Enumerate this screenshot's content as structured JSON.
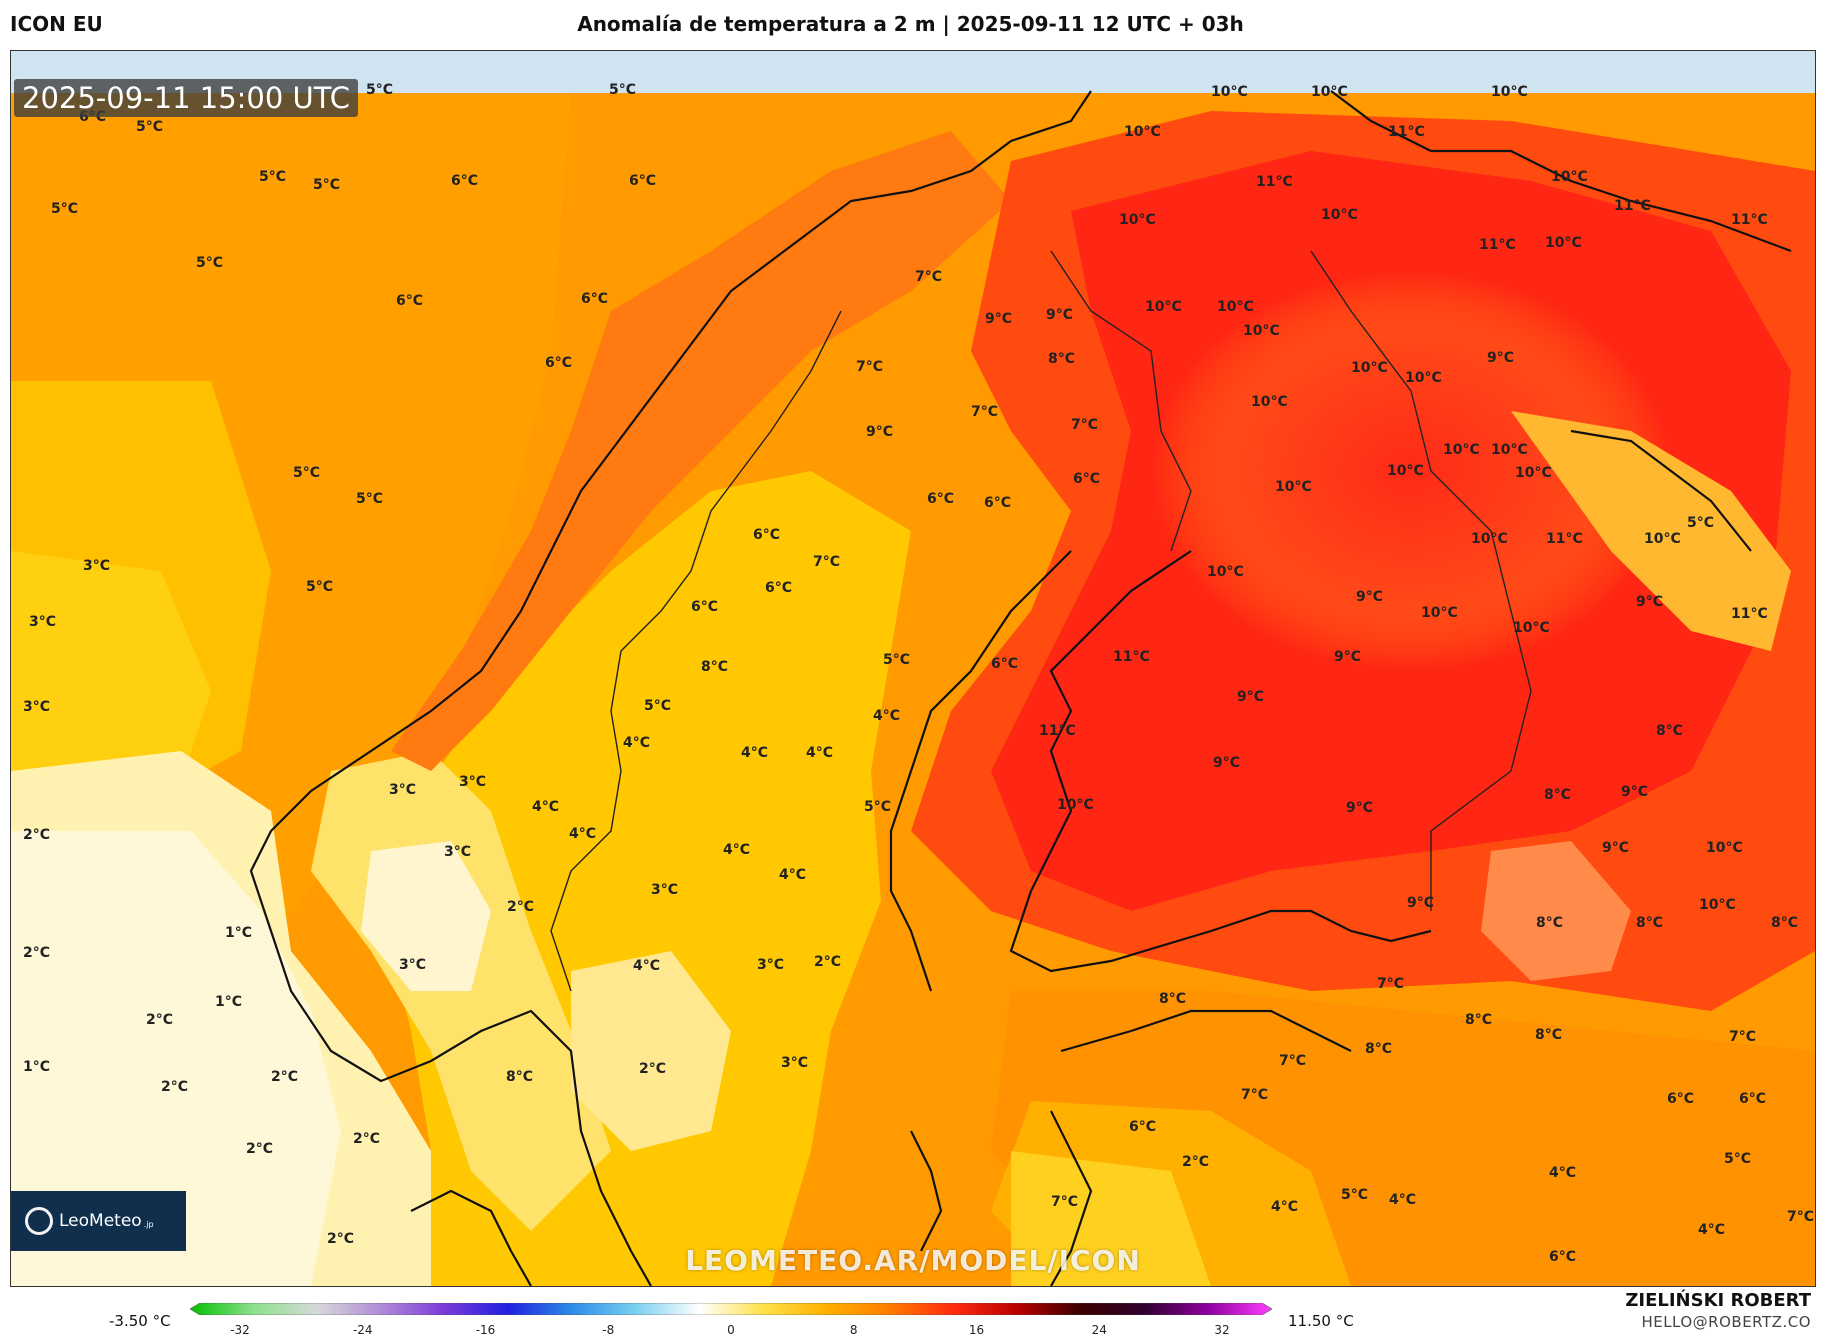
{
  "header": {
    "model_name": "ICON EU",
    "title": "Anomalía de temperatura a 2 m | 2025-09-11 12 UTC + 03h"
  },
  "map": {
    "timestamp": "2025-09-11 15:00 UTC",
    "watermark": "LEOMETEO.AR/MODEL/ICON",
    "logo": {
      "brand": "LeoMeteo",
      "suffix": ".jp",
      "icon": "sun-icon"
    },
    "sea_color": "#cfe3f1",
    "labels": [
      "5°C",
      "5°C",
      "6°C",
      "5°C",
      "5°C",
      "5°C",
      "6°C",
      "6°C",
      "5°C",
      "5°C",
      "6°C",
      "6°C",
      "6°C",
      "5°C",
      "5°C",
      "3°C",
      "5°C",
      "3°C",
      "3°C",
      "2°C",
      "1°C",
      "1°C",
      "2°C",
      "2°C",
      "1°C",
      "2°C",
      "2°C",
      "2°C",
      "2°C",
      "2°C",
      "10°C",
      "10°C",
      "10°C",
      "10°C",
      "11°C",
      "11°C",
      "10°C",
      "11°C",
      "10°C",
      "10°C",
      "11°C",
      "10°C",
      "11°C",
      "10°C",
      "10°C",
      "9°C",
      "10°C",
      "10°C",
      "9°C",
      "10°C",
      "10°C",
      "10°C",
      "10°C",
      "10°C",
      "10°C",
      "10°C",
      "5°C",
      "10°C",
      "11°C",
      "10°C",
      "9°C",
      "10°C",
      "10°C",
      "10°C",
      "11°C",
      "9°C",
      "9°C",
      "9°C",
      "11°C",
      "11°C",
      "9°C",
      "9°C",
      "8°C",
      "9°C",
      "8°C",
      "10°C",
      "9°C",
      "10°C",
      "10°C",
      "8°C",
      "8°C",
      "8°C",
      "9°C",
      "7°C",
      "9°C",
      "7°C",
      "8°C",
      "7°C",
      "9°C",
      "7°C",
      "6°C",
      "6°C",
      "6°C",
      "6°C",
      "7°C",
      "6°C",
      "6°C",
      "5°C",
      "8°C",
      "6°C",
      "5°C",
      "4°C",
      "4°C",
      "4°C",
      "4°C",
      "4°C",
      "3°C",
      "3°C",
      "4°C",
      "3°C",
      "4°C",
      "5°C",
      "4°C",
      "3°C",
      "2°C",
      "3°C",
      "3°C",
      "4°C",
      "2°C",
      "3°C",
      "2°C",
      "8°C",
      "8°C",
      "7°C",
      "8°C",
      "8°C",
      "7°C",
      "8°C",
      "7°C",
      "7°C",
      "6°C",
      "6°C",
      "5°C",
      "4°C",
      "4°C",
      "6°C",
      "7°C",
      "6°C",
      "2°C",
      "7°C",
      "4°C",
      "5°C",
      "4°C"
    ]
  },
  "colorbar": {
    "min_label": "-3.50 °C",
    "max_label": "11.50 °C",
    "ticks": [
      "-32",
      "-24",
      "-16",
      "-8",
      "0",
      "8",
      "16",
      "24",
      "32"
    ],
    "range": [
      -32,
      32
    ],
    "stops": [
      "#00c000",
      "#8ee08e",
      "#d8d8d8",
      "#b08ad8",
      "#7a3ad8",
      "#2020e0",
      "#2c8ce8",
      "#7ad0f0",
      "#ffffff",
      "#ffe14a",
      "#ffb000",
      "#ff7b00",
      "#ff2a10",
      "#b80000",
      "#3a0000",
      "#300030",
      "#9000a0",
      "#ff40ff"
    ]
  },
  "footer": {
    "author": "ZIELIŃSKI ROBERT",
    "email": "HELLO@ROBERTZ.CO"
  }
}
